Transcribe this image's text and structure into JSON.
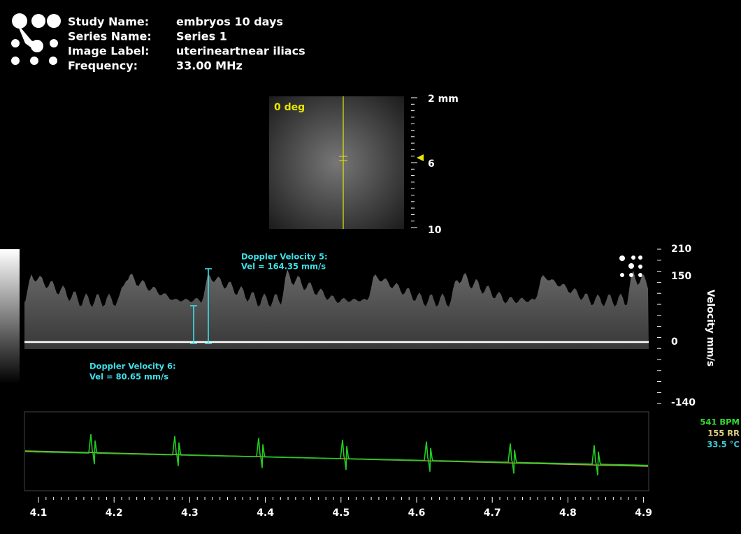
{
  "header": {
    "rows": [
      {
        "label": "Study Name:",
        "value": "embryos 10 days"
      },
      {
        "label": "Series Name:",
        "value": "Series 1"
      },
      {
        "label": "Image Label:",
        "value": "uterineartnear iliacs"
      },
      {
        "label": "Frequency:",
        "value": "33.00 MHz"
      }
    ]
  },
  "bmode": {
    "angle": "0 deg",
    "depth_labels": [
      "2 mm",
      "6",
      "10"
    ]
  },
  "doppler": {
    "annotations": [
      {
        "title": "Doppler Velocity 5:",
        "value": "Vel = 164.35 mm/s"
      },
      {
        "title": "Doppler Velocity 6:",
        "value": "Vel = 80.65 mm/s"
      }
    ],
    "velocity_labels": [
      "210",
      "150",
      "0",
      "-140"
    ],
    "axis_title": "Velocity mm/s"
  },
  "vitals": [
    "541 BPM",
    "155 RR",
    "33.5 °C"
  ],
  "time_labels": [
    "4.1",
    "4.2",
    "4.3",
    "4.4",
    "4.5",
    "4.6",
    "4.7",
    "4.8",
    "4.9"
  ]
}
